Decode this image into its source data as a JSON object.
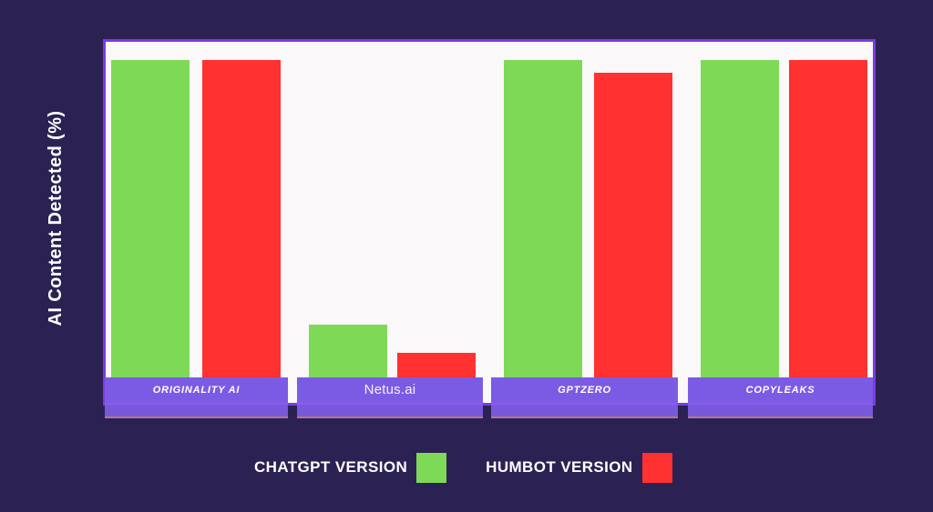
{
  "chart_data": {
    "type": "bar",
    "title": "",
    "ylabel": "AI Content Detected (%)",
    "ylim": [
      0,
      100
    ],
    "grid": false,
    "legend_position": "bottom",
    "categories": [
      "ORIGINALITY AI",
      "Netus.ai",
      "GPTZERO",
      "COPYLEAKS"
    ],
    "series": [
      {
        "name": "CHATGPT VERSION",
        "color": "#7ED957",
        "values": [
          100,
          17,
          100,
          100
        ]
      },
      {
        "name": "HUMBOT VERSION",
        "color": "#FF3131",
        "values": [
          100,
          8,
          96,
          100
        ]
      }
    ]
  },
  "theme": {
    "background": "#2B2253",
    "panel_background": "#FAF8F8",
    "panel_border": "#7C3AE3",
    "category_banner": "#7B5BE4",
    "category_banner_base": "#7858DB",
    "banner_divider": "#8C5BF0",
    "banner_base_edge": "#B07B80",
    "text": "#FFFFFF"
  }
}
